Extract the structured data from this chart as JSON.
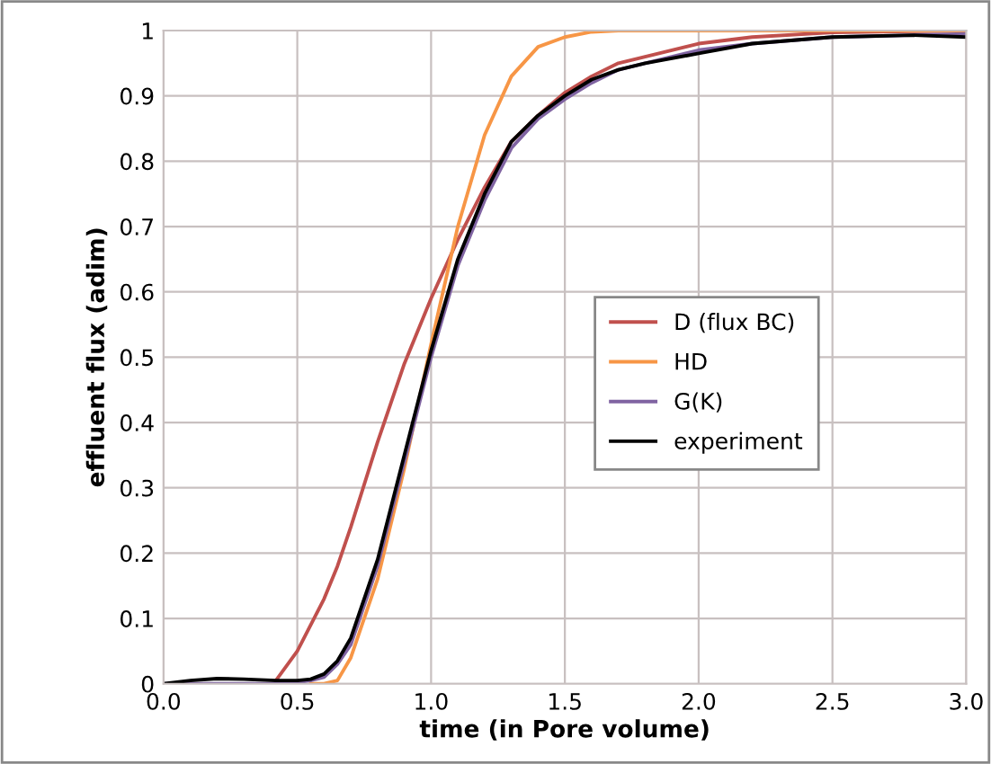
{
  "chart_data": {
    "type": "line",
    "xlabel": "time (in Pore volume)",
    "ylabel": "effluent flux (adim)",
    "x": [
      0,
      0.1,
      0.2,
      0.3,
      0.42,
      0.5,
      0.55,
      0.6,
      0.65,
      0.7,
      0.8,
      0.9,
      1.0,
      1.1,
      1.2,
      1.3,
      1.4,
      1.5,
      1.6,
      1.7,
      1.8,
      2.0,
      2.2,
      2.5,
      2.8,
      3.0
    ],
    "series": [
      {
        "name": "D (flux BC)",
        "color": "#c0504d",
        "values": [
          null,
          null,
          null,
          null,
          0.005,
          0.05,
          0.09,
          0.13,
          0.18,
          0.24,
          0.37,
          0.49,
          0.59,
          0.68,
          0.76,
          0.83,
          0.87,
          0.905,
          0.93,
          0.95,
          0.96,
          0.98,
          0.99,
          0.997,
          0.999,
          1.0
        ]
      },
      {
        "name": "HD",
        "color": "#f79646",
        "values": [
          null,
          null,
          null,
          null,
          null,
          null,
          0,
          0,
          0.005,
          0.04,
          0.16,
          0.33,
          0.52,
          0.7,
          0.84,
          0.93,
          0.975,
          0.99,
          0.998,
          1.0,
          1.0,
          1.0,
          1.0,
          1.0,
          1.0,
          1.0
        ]
      },
      {
        "name": "G(K)",
        "color": "#8064a2",
        "values": [
          0,
          0,
          0,
          0,
          0,
          0.002,
          0.005,
          0.01,
          0.03,
          0.06,
          0.18,
          0.34,
          0.5,
          0.64,
          0.74,
          0.82,
          0.865,
          0.895,
          0.92,
          0.94,
          0.95,
          0.97,
          0.98,
          0.99,
          0.993,
          0.995
        ]
      },
      {
        "name": "experiment",
        "color": "#000000",
        "values": [
          0,
          0.005,
          0.008,
          0.007,
          0.005,
          0.005,
          0.007,
          0.015,
          0.035,
          0.07,
          0.19,
          0.35,
          0.51,
          0.65,
          0.75,
          0.83,
          0.87,
          0.9,
          0.925,
          0.94,
          0.95,
          0.965,
          0.98,
          0.99,
          0.993,
          0.99
        ]
      }
    ],
    "xlim": [
      0,
      3.0
    ],
    "ylim": [
      0,
      1
    ],
    "xticks": [
      {
        "value": 0,
        "label": "0.0"
      },
      0.5,
      {
        "value": 1,
        "label": "1.0"
      },
      1.5,
      {
        "value": 2,
        "label": "2.0"
      },
      2.5,
      {
        "value": 3,
        "label": "3.0"
      }
    ],
    "yticks": [
      0,
      0.1,
      0.2,
      0.3,
      0.4,
      0.5,
      0.6,
      0.7,
      0.8,
      0.9,
      1
    ],
    "grid": true,
    "legend": "right",
    "marker": "none",
    "line_style": "solid"
  }
}
